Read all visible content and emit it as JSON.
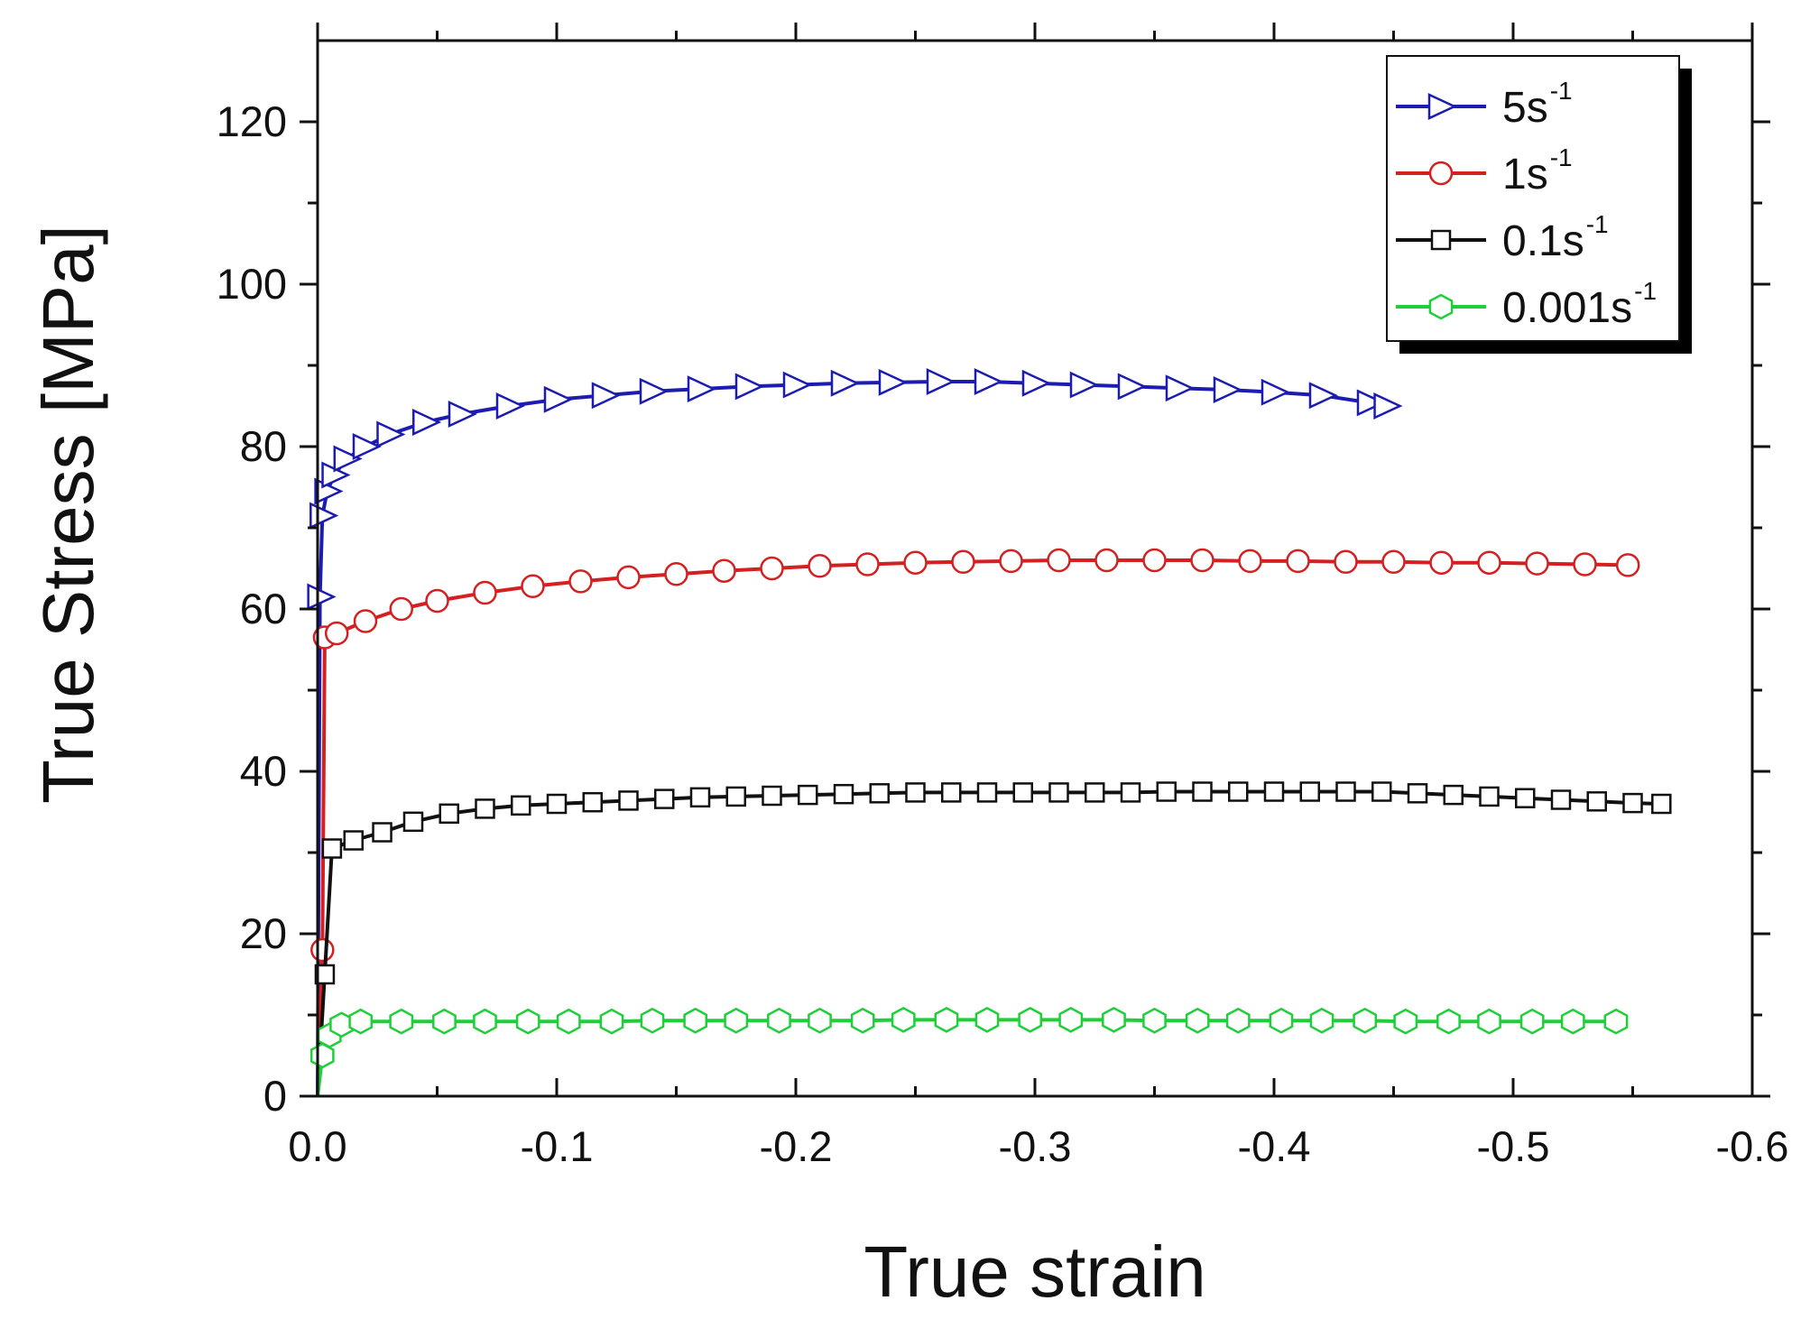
{
  "chart_data": {
    "type": "line",
    "title": "",
    "xlabel": "True strain",
    "ylabel": "True Stress [MPa]",
    "xlim": [
      0.0,
      -0.6
    ],
    "ylim": [
      0,
      130
    ],
    "xticks": [
      "0.0",
      "-0.1",
      "-0.2",
      "-0.3",
      "-0.4",
      "-0.5",
      "-0.6"
    ],
    "xtick_values": [
      0.0,
      -0.1,
      -0.2,
      -0.3,
      -0.4,
      -0.5,
      -0.6
    ],
    "yticks": [
      "0",
      "20",
      "40",
      "60",
      "80",
      "100",
      "120"
    ],
    "ytick_values": [
      0,
      20,
      40,
      60,
      80,
      100,
      120
    ],
    "grid": false,
    "legend_position": "top-right",
    "series": [
      {
        "name": "5s",
        "superscript": "-1",
        "color": "#1c1cb0",
        "marker": "triangle-right",
        "x": [
          0.0,
          -0.001,
          -0.002,
          -0.004,
          -0.007,
          -0.012,
          -0.02,
          -0.03,
          -0.045,
          -0.06,
          -0.08,
          -0.1,
          -0.12,
          -0.14,
          -0.16,
          -0.18,
          -0.2,
          -0.22,
          -0.24,
          -0.26,
          -0.28,
          -0.3,
          -0.32,
          -0.34,
          -0.36,
          -0.38,
          -0.4,
          -0.42,
          -0.44,
          -0.447
        ],
        "y": [
          0,
          61.5,
          71.5,
          74.5,
          76.5,
          78.5,
          80,
          81.5,
          83,
          84,
          85,
          85.8,
          86.3,
          86.8,
          87.1,
          87.4,
          87.6,
          87.8,
          87.9,
          88,
          88,
          87.8,
          87.6,
          87.4,
          87.2,
          87,
          86.7,
          86.3,
          85.4,
          85
        ]
      },
      {
        "name": "1s",
        "superscript": "-1",
        "color": "#d42020",
        "marker": "circle",
        "x": [
          0.0,
          -0.002,
          -0.003,
          -0.008,
          -0.02,
          -0.035,
          -0.05,
          -0.07,
          -0.09,
          -0.11,
          -0.13,
          -0.15,
          -0.17,
          -0.19,
          -0.21,
          -0.23,
          -0.25,
          -0.27,
          -0.29,
          -0.31,
          -0.33,
          -0.35,
          -0.37,
          -0.39,
          -0.41,
          -0.43,
          -0.45,
          -0.47,
          -0.49,
          -0.51,
          -0.53,
          -0.548
        ],
        "y": [
          0,
          18,
          56.5,
          57,
          58.5,
          60,
          61,
          62,
          62.8,
          63.4,
          63.9,
          64.3,
          64.7,
          65,
          65.3,
          65.5,
          65.7,
          65.8,
          65.9,
          66,
          66,
          66,
          66,
          65.9,
          65.9,
          65.8,
          65.8,
          65.7,
          65.7,
          65.6,
          65.5,
          65.4
        ]
      },
      {
        "name": "0.1s",
        "superscript": "-1",
        "color": "#111111",
        "marker": "square",
        "x": [
          0.0,
          -0.003,
          -0.006,
          -0.015,
          -0.027,
          -0.04,
          -0.055,
          -0.07,
          -0.085,
          -0.1,
          -0.115,
          -0.13,
          -0.145,
          -0.16,
          -0.175,
          -0.19,
          -0.205,
          -0.22,
          -0.235,
          -0.25,
          -0.265,
          -0.28,
          -0.295,
          -0.31,
          -0.325,
          -0.34,
          -0.355,
          -0.37,
          -0.385,
          -0.4,
          -0.415,
          -0.43,
          -0.445,
          -0.46,
          -0.475,
          -0.49,
          -0.505,
          -0.52,
          -0.535,
          -0.55,
          -0.562
        ],
        "y": [
          0,
          15,
          30.5,
          31.5,
          32.5,
          33.8,
          34.8,
          35.4,
          35.8,
          36,
          36.2,
          36.4,
          36.6,
          36.8,
          36.9,
          37,
          37.1,
          37.2,
          37.3,
          37.4,
          37.4,
          37.4,
          37.4,
          37.4,
          37.4,
          37.4,
          37.5,
          37.5,
          37.5,
          37.5,
          37.5,
          37.5,
          37.5,
          37.3,
          37.1,
          36.9,
          36.7,
          36.5,
          36.3,
          36.1,
          36
        ]
      },
      {
        "name": "0.001s",
        "superscript": "-1",
        "color": "#1fcf3a",
        "marker": "hexagon",
        "x": [
          0.0,
          -0.002,
          -0.005,
          -0.01,
          -0.018,
          -0.035,
          -0.053,
          -0.07,
          -0.088,
          -0.105,
          -0.123,
          -0.14,
          -0.158,
          -0.175,
          -0.193,
          -0.21,
          -0.228,
          -0.245,
          -0.263,
          -0.28,
          -0.298,
          -0.315,
          -0.333,
          -0.35,
          -0.368,
          -0.385,
          -0.403,
          -0.42,
          -0.438,
          -0.455,
          -0.473,
          -0.49,
          -0.508,
          -0.525,
          -0.543
        ],
        "y": [
          0,
          5,
          7.5,
          8.8,
          9.2,
          9.2,
          9.2,
          9.2,
          9.2,
          9.2,
          9.2,
          9.3,
          9.3,
          9.3,
          9.3,
          9.3,
          9.3,
          9.4,
          9.4,
          9.4,
          9.4,
          9.4,
          9.4,
          9.3,
          9.3,
          9.3,
          9.3,
          9.3,
          9.3,
          9.2,
          9.2,
          9.2,
          9.2,
          9.2,
          9.2
        ]
      }
    ]
  }
}
